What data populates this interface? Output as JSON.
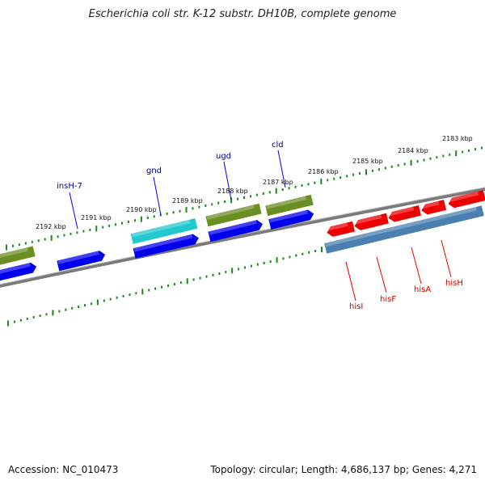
{
  "title": "Escherichia coli str. K-12 substr. DH10B, complete genome",
  "footer": {
    "accession": "Accession: NC_010473",
    "summary": "Topology: circular; Length: 4,686,137 bp; Genes: 4,271"
  },
  "ruler_labels": [
    "2192 kbp",
    "2191 kbp",
    "2190 kbp",
    "2189 kbp",
    "2188 kbp",
    "2187 kbp",
    "2186 kbp",
    "2185 kbp",
    "2184 kbp",
    "2183 kbp"
  ],
  "genes_forward_labeled": [
    "insH-7",
    "gnd",
    "ugd",
    "cld"
  ],
  "genes_reverse_labeled": [
    "hisI",
    "hisF",
    "hisA",
    "hisH"
  ],
  "colors": {
    "ruler": "#1b8a1b",
    "backbone": "#808080",
    "cds": "#0000ee",
    "gene_olive": "#6b8e23",
    "gene_cyan": "#22c8d0",
    "gene_red": "#ee0000",
    "gene_steel": "#4a7fb0",
    "label_blue": "#00008b",
    "label_red": "#cc0000"
  }
}
